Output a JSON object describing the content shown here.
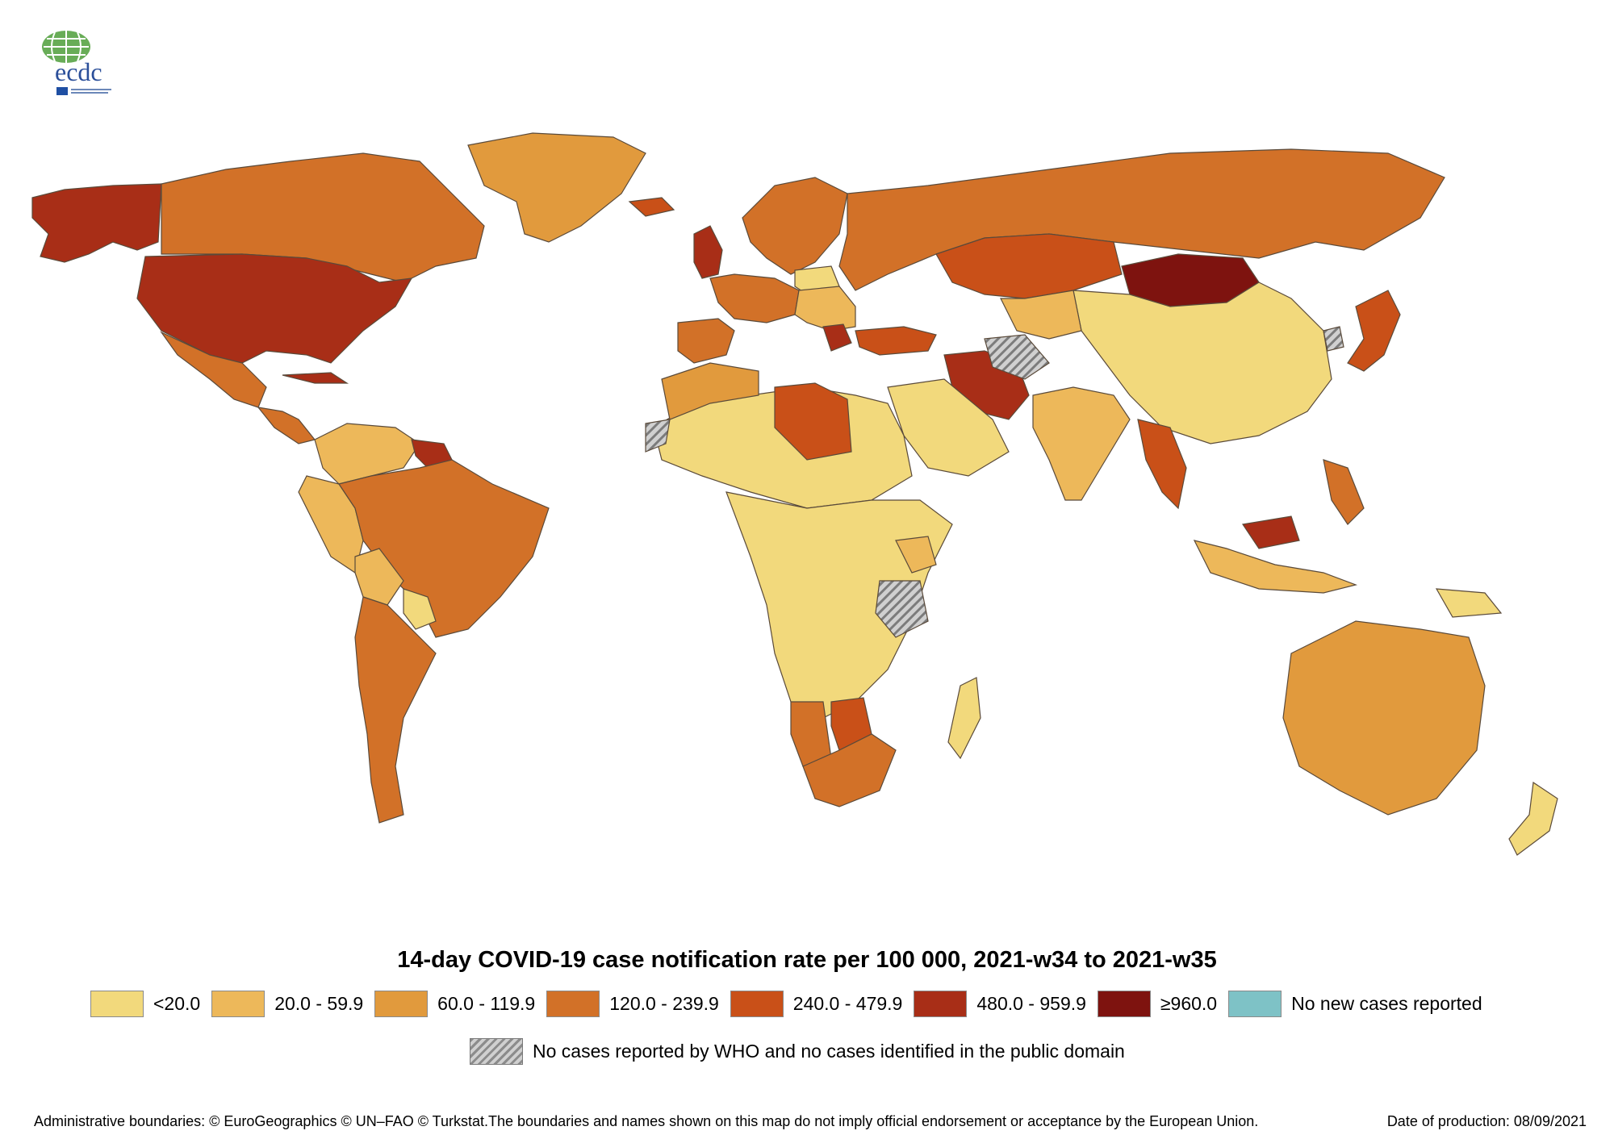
{
  "logo": {
    "text": "ecdc"
  },
  "map": {
    "title": "14-day COVID-19 case notification rate per 100 000, 2021-w34 to 2021-w35",
    "legend": [
      {
        "label": "<20.0",
        "color": "#F2D97C"
      },
      {
        "label": "20.0 - 59.9",
        "color": "#EDB85A"
      },
      {
        "label": "60.0 - 119.9",
        "color": "#E19A3D"
      },
      {
        "label": "120.0 - 239.9",
        "color": "#D27128"
      },
      {
        "label": "240.0 - 479.9",
        "color": "#C95018"
      },
      {
        "label": "480.0 - 959.9",
        "color": "#A82E17"
      },
      {
        "label": "≥960.0",
        "color": "#7E130F"
      },
      {
        "label": "No new cases reported",
        "color": "#7EC2C6"
      }
    ],
    "no_data": {
      "label": "No cases reported by WHO and no cases identified in the public domain"
    },
    "regions": [
      {
        "name": "Alaska",
        "class": "480.0 - 959.9"
      },
      {
        "name": "Canada",
        "class": "120.0 - 239.9"
      },
      {
        "name": "Greenland",
        "class": "60.0 - 119.9"
      },
      {
        "name": "United States",
        "class": "480.0 - 959.9"
      },
      {
        "name": "Mexico",
        "class": "120.0 - 239.9"
      },
      {
        "name": "Cuba",
        "class": "480.0 - 959.9"
      },
      {
        "name": "Central America",
        "class": "120.0 - 239.9"
      },
      {
        "name": "Colombia / Venezuela",
        "class": "20.0 - 59.9"
      },
      {
        "name": "Guyana / Suriname",
        "class": "480.0 - 959.9"
      },
      {
        "name": "Peru / Ecuador",
        "class": "20.0 - 59.9"
      },
      {
        "name": "Brazil",
        "class": "120.0 - 239.9"
      },
      {
        "name": "Bolivia",
        "class": "20.0 - 59.9"
      },
      {
        "name": "Paraguay",
        "class": "<20.0"
      },
      {
        "name": "Chile / Argentina",
        "class": "120.0 - 239.9"
      },
      {
        "name": "Iceland",
        "class": "240.0 - 479.9"
      },
      {
        "name": "Scandinavia",
        "class": "120.0 - 239.9"
      },
      {
        "name": "United Kingdom",
        "class": "480.0 - 959.9"
      },
      {
        "name": "Western Europe",
        "class": "120.0 - 239.9"
      },
      {
        "name": "Iberia",
        "class": "120.0 - 239.9"
      },
      {
        "name": "Poland",
        "class": "<20.0"
      },
      {
        "name": "Central Europe",
        "class": "20.0 - 59.9"
      },
      {
        "name": "Serbia / Montenegro",
        "class": "480.0 - 959.9"
      },
      {
        "name": "Russia",
        "class": "120.0 - 239.9"
      },
      {
        "name": "Kazakhstan",
        "class": "240.0 - 479.9"
      },
      {
        "name": "Mongolia",
        "class": "≥960.0"
      },
      {
        "name": "China",
        "class": "<20.0"
      },
      {
        "name": "Japan",
        "class": "240.0 - 479.9"
      },
      {
        "name": "Central Asia",
        "class": "20.0 - 59.9"
      },
      {
        "name": "Turkey",
        "class": "240.0 - 479.9"
      },
      {
        "name": "Iran",
        "class": "480.0 - 959.9"
      },
      {
        "name": "Arabian Peninsula",
        "class": "<20.0"
      },
      {
        "name": "India",
        "class": "20.0 - 59.9"
      },
      {
        "name": "Myanmar / Thailand",
        "class": "240.0 - 479.9"
      },
      {
        "name": "Malaysia",
        "class": "480.0 - 959.9"
      },
      {
        "name": "Indonesia",
        "class": "20.0 - 59.9"
      },
      {
        "name": "Philippines",
        "class": "120.0 - 239.9"
      },
      {
        "name": "Papua New Guinea",
        "class": "<20.0"
      },
      {
        "name": "Australia",
        "class": "60.0 - 119.9"
      },
      {
        "name": "New Zealand",
        "class": "<20.0"
      },
      {
        "name": "Northern Africa",
        "class": "<20.0"
      },
      {
        "name": "Morocco / Algeria",
        "class": "60.0 - 119.9"
      },
      {
        "name": "Libya",
        "class": "240.0 - 479.9"
      },
      {
        "name": "Sub-Saharan Africa",
        "class": "<20.0"
      },
      {
        "name": "Kenya",
        "class": "20.0 - 59.9"
      },
      {
        "name": "Namibia",
        "class": "120.0 - 239.9"
      },
      {
        "name": "Botswana",
        "class": "240.0 - 479.9"
      },
      {
        "name": "South Africa",
        "class": "120.0 - 239.9"
      },
      {
        "name": "Madagascar",
        "class": "<20.0"
      },
      {
        "name": "Tanzania",
        "class": "no data"
      },
      {
        "name": "Western Sahara",
        "class": "no data"
      },
      {
        "name": "Afghanistan / Turkmenistan",
        "class": "no data"
      },
      {
        "name": "North Korea",
        "class": "no data"
      }
    ]
  },
  "footer": {
    "attribution": "Administrative boundaries: © EuroGeographics © UN–FAO © Turkstat.The boundaries and names shown on this map do not imply official endorsement or acceptance by the European Union.",
    "date": "Date of production: 08/09/2021"
  }
}
